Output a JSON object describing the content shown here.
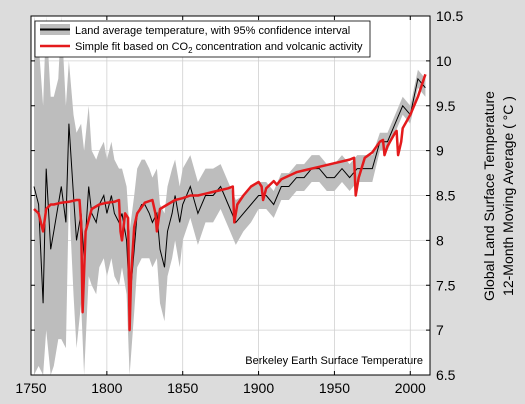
{
  "chart_data": {
    "type": "line",
    "title": "",
    "xlabel": "",
    "ylabel_line1": "Global Land Surface Temperature",
    "ylabel_line2": "12-Month Moving Average ( °C )",
    "xlim": [
      1750,
      2013
    ],
    "ylim": [
      6.5,
      10.5
    ],
    "x_ticks": [
      1750,
      1800,
      1850,
      1900,
      1950,
      2000
    ],
    "y_ticks": [
      6.5,
      7,
      7.5,
      8,
      8.5,
      9,
      9.5,
      10,
      10.5
    ],
    "x_tick_labels": [
      "1750",
      "1800",
      "1850",
      "1900",
      "1950",
      "2000"
    ],
    "y_tick_labels": [
      "6.5",
      "7",
      "7.5",
      "8",
      "8.5",
      "9",
      "9.5",
      "10",
      "10.5"
    ],
    "grid": true,
    "legend_position": "top-left",
    "annotation": "Berkeley Earth Surface Temperature",
    "legend": {
      "entry1_text": "Land average temperature, with 95% confidence interval",
      "entry2_prefix": "Simple fit based on CO",
      "entry2_sub": "2",
      "entry2_suffix": " concentration and volcanic activity"
    },
    "colors": {
      "series_obs": "#000000",
      "band": "#bdbdbd",
      "series_fit": "#e41a1c",
      "background": "#dcdcdc",
      "plot_bg": "#ffffff",
      "grid": "#d0d0d0"
    },
    "series": [
      {
        "name": "Land average temperature, with 95% confidence interval",
        "x": [
          1752,
          1755,
          1758,
          1760,
          1763,
          1765,
          1768,
          1770,
          1773,
          1775,
          1778,
          1780,
          1783,
          1785,
          1788,
          1790,
          1793,
          1795,
          1798,
          1800,
          1803,
          1805,
          1808,
          1810,
          1813,
          1815,
          1818,
          1820,
          1823,
          1825,
          1828,
          1830,
          1833,
          1835,
          1838,
          1840,
          1843,
          1845,
          1848,
          1850,
          1855,
          1860,
          1865,
          1870,
          1875,
          1880,
          1885,
          1890,
          1895,
          1900,
          1905,
          1910,
          1915,
          1920,
          1925,
          1930,
          1935,
          1940,
          1945,
          1950,
          1955,
          1960,
          1965,
          1970,
          1975,
          1980,
          1985,
          1990,
          1995,
          2000,
          2005,
          2010
        ],
        "y": [
          8.6,
          8.4,
          7.3,
          8.8,
          7.9,
          8.1,
          8.4,
          8.6,
          8.2,
          9.3,
          8.5,
          8.0,
          8.3,
          7.8,
          8.6,
          8.3,
          8.2,
          8.4,
          8.5,
          8.3,
          8.5,
          8.3,
          8.2,
          8.3,
          8.0,
          7.3,
          7.9,
          8.3,
          8.4,
          8.4,
          8.3,
          8.2,
          8.3,
          7.9,
          7.7,
          8.1,
          8.3,
          8.5,
          8.2,
          8.4,
          8.6,
          8.3,
          8.5,
          8.5,
          8.6,
          8.4,
          8.2,
          8.3,
          8.4,
          8.5,
          8.5,
          8.4,
          8.6,
          8.6,
          8.7,
          8.7,
          8.8,
          8.8,
          8.7,
          8.7,
          8.8,
          8.7,
          8.8,
          8.8,
          8.8,
          9.1,
          9.1,
          9.3,
          9.5,
          9.4,
          9.8,
          9.7
        ],
        "ci_upper": [
          10.5,
          10.2,
          9.5,
          10.5,
          9.6,
          9.6,
          9.8,
          10.5,
          9.5,
          10.0,
          9.4,
          9.2,
          9.3,
          9.0,
          9.5,
          9.0,
          8.9,
          9.0,
          9.1,
          8.9,
          9.1,
          8.9,
          8.8,
          8.8,
          8.6,
          8.1,
          8.5,
          8.8,
          8.9,
          8.9,
          8.8,
          8.7,
          8.8,
          8.4,
          8.3,
          8.6,
          8.8,
          8.9,
          8.6,
          8.8,
          8.95,
          8.65,
          8.8,
          8.8,
          8.85,
          8.65,
          8.45,
          8.5,
          8.6,
          8.65,
          8.65,
          8.55,
          8.75,
          8.75,
          8.85,
          8.85,
          8.95,
          8.95,
          8.85,
          8.85,
          8.95,
          8.85,
          8.95,
          8.95,
          8.95,
          9.2,
          9.2,
          9.4,
          9.6,
          9.5,
          9.9,
          9.8
        ],
        "ci_lower": [
          6.5,
          6.6,
          6.5,
          7.0,
          6.5,
          6.6,
          6.9,
          6.9,
          6.8,
          8.5,
          7.4,
          6.8,
          7.3,
          6.5,
          7.6,
          7.5,
          7.4,
          7.7,
          7.8,
          7.6,
          7.8,
          7.6,
          7.5,
          7.7,
          7.4,
          6.5,
          7.2,
          7.7,
          7.8,
          7.8,
          7.8,
          7.7,
          7.8,
          7.3,
          7.1,
          7.6,
          7.8,
          8.0,
          7.7,
          8.0,
          8.25,
          7.95,
          8.2,
          8.2,
          8.35,
          8.15,
          7.95,
          8.1,
          8.2,
          8.35,
          8.35,
          8.25,
          8.45,
          8.45,
          8.55,
          8.55,
          8.65,
          8.65,
          8.55,
          8.55,
          8.65,
          8.55,
          8.65,
          8.65,
          8.65,
          9.0,
          9.0,
          9.2,
          9.4,
          9.3,
          9.7,
          9.6
        ]
      },
      {
        "name": "Simple fit based on CO2 concentration and volcanic activity",
        "x": [
          1752,
          1755,
          1758,
          1760,
          1763,
          1765,
          1770,
          1775,
          1780,
          1782,
          1783,
          1784,
          1786,
          1790,
          1795,
          1800,
          1805,
          1808,
          1809,
          1810,
          1812,
          1814,
          1815,
          1816,
          1818,
          1820,
          1825,
          1830,
          1832,
          1833,
          1835,
          1840,
          1845,
          1850,
          1855,
          1860,
          1865,
          1870,
          1875,
          1880,
          1883,
          1884,
          1886,
          1890,
          1895,
          1900,
          1902,
          1903,
          1905,
          1910,
          1912,
          1915,
          1920,
          1925,
          1930,
          1940,
          1950,
          1960,
          1963,
          1964,
          1966,
          1970,
          1975,
          1980,
          1982,
          1983,
          1985,
          1990,
          1991,
          1992,
          1994,
          1995,
          2000,
          2005,
          2010
        ],
        "y": [
          8.35,
          8.3,
          8.1,
          8.35,
          8.4,
          8.4,
          8.42,
          8.43,
          8.45,
          8.45,
          8.2,
          7.2,
          8.1,
          8.35,
          8.4,
          8.42,
          8.43,
          8.45,
          8.1,
          8.0,
          8.3,
          8.25,
          7.0,
          7.6,
          8.15,
          8.3,
          8.42,
          8.45,
          8.3,
          8.1,
          8.35,
          8.4,
          8.45,
          8.47,
          8.5,
          8.5,
          8.52,
          8.54,
          8.56,
          8.58,
          8.6,
          8.2,
          8.4,
          8.5,
          8.6,
          8.65,
          8.6,
          8.45,
          8.58,
          8.66,
          8.62,
          8.68,
          8.72,
          8.76,
          8.78,
          8.82,
          8.86,
          8.9,
          8.92,
          8.5,
          8.7,
          8.92,
          8.98,
          9.1,
          9.12,
          8.95,
          9.05,
          9.2,
          9.22,
          8.95,
          9.1,
          9.25,
          9.4,
          9.6,
          9.85
        ]
      }
    ]
  }
}
